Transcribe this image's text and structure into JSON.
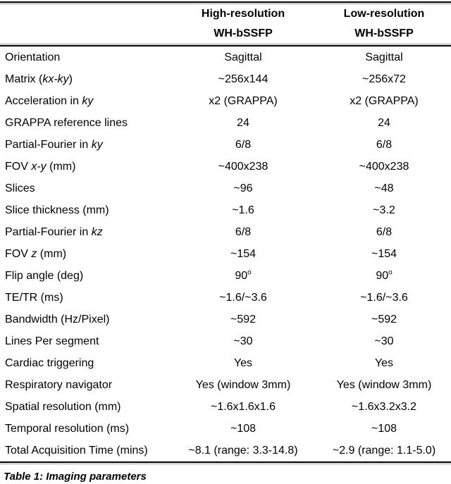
{
  "table": {
    "header": {
      "columns": [
        {
          "line1": "High-resolution",
          "line2": "WH-bSSFP"
        },
        {
          "line1": "Low-resolution",
          "line2": "WH-bSSFP"
        }
      ]
    },
    "rows": [
      {
        "label": [
          {
            "t": "Orientation"
          }
        ],
        "values": [
          [
            {
              "t": "Sagittal"
            }
          ],
          [
            {
              "t": "Sagittal"
            }
          ]
        ]
      },
      {
        "label": [
          {
            "t": "Matrix ("
          },
          {
            "t": "kx-ky",
            "i": true
          },
          {
            "t": ")"
          }
        ],
        "values": [
          [
            {
              "t": "~256x144"
            }
          ],
          [
            {
              "t": "~256x72"
            }
          ]
        ]
      },
      {
        "label": [
          {
            "t": "Acceleration in "
          },
          {
            "t": "ky",
            "i": true
          }
        ],
        "values": [
          [
            {
              "t": "x2 (GRAPPA)"
            }
          ],
          [
            {
              "t": "x2 (GRAPPA)"
            }
          ]
        ]
      },
      {
        "label": [
          {
            "t": "GRAPPA reference lines"
          }
        ],
        "values": [
          [
            {
              "t": "24"
            }
          ],
          [
            {
              "t": "24"
            }
          ]
        ]
      },
      {
        "label": [
          {
            "t": "Partial-Fourier in "
          },
          {
            "t": "ky",
            "i": true
          }
        ],
        "values": [
          [
            {
              "t": "6/8"
            }
          ],
          [
            {
              "t": "6/8"
            }
          ]
        ]
      },
      {
        "label": [
          {
            "t": "FOV "
          },
          {
            "t": "x-y",
            "i": true
          },
          {
            "t": " (mm)"
          }
        ],
        "values": [
          [
            {
              "t": "~400x238"
            }
          ],
          [
            {
              "t": "~400x238"
            }
          ]
        ]
      },
      {
        "label": [
          {
            "t": "Slices"
          }
        ],
        "values": [
          [
            {
              "t": "~96"
            }
          ],
          [
            {
              "t": "~48"
            }
          ]
        ]
      },
      {
        "label": [
          {
            "t": "Slice thickness (mm)"
          }
        ],
        "values": [
          [
            {
              "t": "~1.6"
            }
          ],
          [
            {
              "t": "~3.2"
            }
          ]
        ]
      },
      {
        "label": [
          {
            "t": "Partial-Fourier in "
          },
          {
            "t": "kz",
            "i": true
          }
        ],
        "values": [
          [
            {
              "t": "6/8"
            }
          ],
          [
            {
              "t": "6/8"
            }
          ]
        ]
      },
      {
        "label": [
          {
            "t": "FOV "
          },
          {
            "t": "z",
            "i": true
          },
          {
            "t": " (mm)"
          }
        ],
        "values": [
          [
            {
              "t": "~154"
            }
          ],
          [
            {
              "t": "~154"
            }
          ]
        ]
      },
      {
        "label": [
          {
            "t": "Flip angle (deg)"
          }
        ],
        "values": [
          [
            {
              "t": "90"
            },
            {
              "t": "o",
              "sup": true
            }
          ],
          [
            {
              "t": "90"
            },
            {
              "t": "o",
              "sup": true
            }
          ]
        ]
      },
      {
        "label": [
          {
            "t": "TE/TR (ms)"
          }
        ],
        "values": [
          [
            {
              "t": "~1.6/~3.6"
            }
          ],
          [
            {
              "t": "~1.6/~3.6"
            }
          ]
        ]
      },
      {
        "label": [
          {
            "t": "Bandwidth (Hz/Pixel)"
          }
        ],
        "values": [
          [
            {
              "t": "~592"
            }
          ],
          [
            {
              "t": "~592"
            }
          ]
        ]
      },
      {
        "label": [
          {
            "t": "Lines Per segment"
          }
        ],
        "values": [
          [
            {
              "t": "~30"
            }
          ],
          [
            {
              "t": "~30"
            }
          ]
        ]
      },
      {
        "label": [
          {
            "t": "Cardiac triggering"
          }
        ],
        "values": [
          [
            {
              "t": "Yes"
            }
          ],
          [
            {
              "t": "Yes"
            }
          ]
        ]
      },
      {
        "label": [
          {
            "t": "Respiratory navigator"
          }
        ],
        "values": [
          [
            {
              "t": "Yes (window 3mm)"
            }
          ],
          [
            {
              "t": "Yes (window 3mm)"
            }
          ]
        ]
      },
      {
        "label": [
          {
            "t": "Spatial resolution (mm)"
          }
        ],
        "values": [
          [
            {
              "t": "~1.6x1.6x1.6"
            }
          ],
          [
            {
              "t": "~1.6x3.2x3.2"
            }
          ]
        ]
      },
      {
        "label": [
          {
            "t": "Temporal resolution (ms)"
          }
        ],
        "values": [
          [
            {
              "t": "~108"
            }
          ],
          [
            {
              "t": "~108"
            }
          ]
        ]
      },
      {
        "label": [
          {
            "t": "Total Acquisition Time (mins)"
          }
        ],
        "values": [
          [
            {
              "t": "~8.1 (range: 3.3-14.8)"
            }
          ],
          [
            {
              "t": "~2.9 (range: 1.1-5.0)"
            }
          ]
        ]
      }
    ],
    "caption": "Table 1: Imaging parameters"
  }
}
